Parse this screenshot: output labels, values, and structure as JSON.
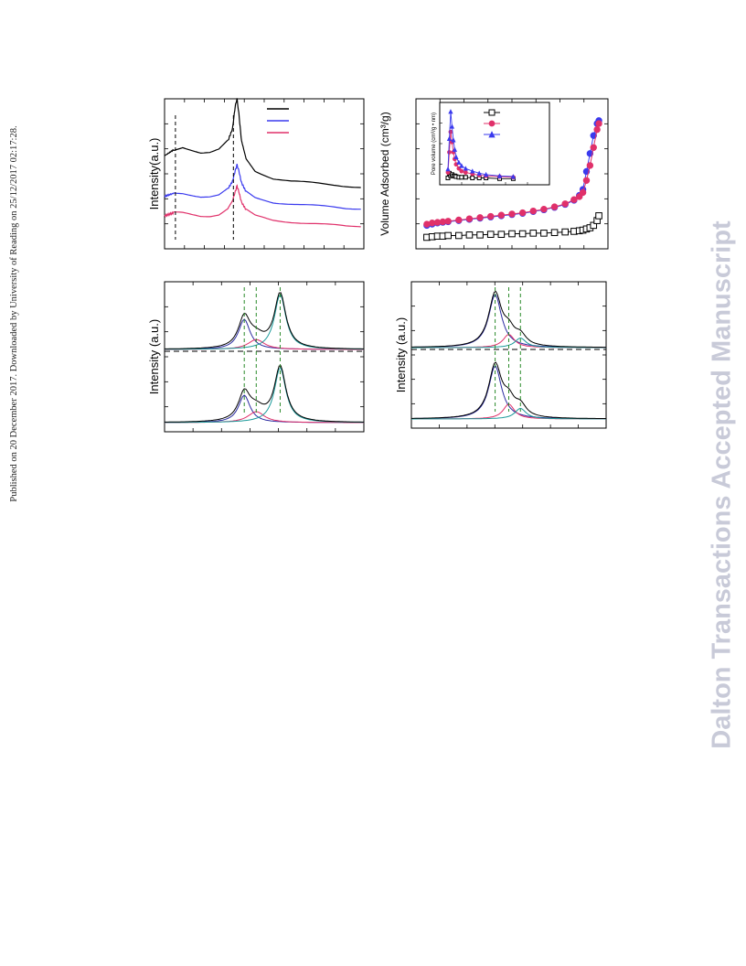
{
  "page": {
    "side_note": "Published on 20 December 2017. Downloaded by University of Reading on 25/12/2017 02:17:28.",
    "watermark": "Dalton Transactions Accepted Manuscript"
  },
  "chart_data": [
    {
      "id": "xrd",
      "type": "line",
      "ylabel": "Intensity(a.u.)",
      "xlabel": "",
      "legend_placement": "top-right",
      "series": [
        {
          "color": "#000000",
          "x": [
            0,
            5,
            10,
            20,
            30,
            40,
            50,
            60,
            70,
            75,
            78,
            80,
            82,
            85,
            90,
            100,
            120,
            140,
            160,
            180,
            200,
            220
          ],
          "y": [
            0.62,
            0.64,
            0.66,
            0.68,
            0.66,
            0.64,
            0.64,
            0.66,
            0.72,
            0.8,
            0.95,
            1.0,
            0.9,
            0.72,
            0.6,
            0.52,
            0.47,
            0.45,
            0.44,
            0.43,
            0.42,
            0.41
          ]
        },
        {
          "color": "#3a3aee",
          "x": [
            0,
            5,
            10,
            20,
            30,
            40,
            50,
            60,
            70,
            75,
            78,
            80,
            82,
            85,
            90,
            100,
            120,
            140,
            160,
            180,
            200,
            220
          ],
          "y": [
            0.35,
            0.36,
            0.37,
            0.37,
            0.36,
            0.35,
            0.35,
            0.36,
            0.4,
            0.45,
            0.52,
            0.56,
            0.52,
            0.44,
            0.38,
            0.34,
            0.31,
            0.3,
            0.29,
            0.28,
            0.27,
            0.27
          ]
        },
        {
          "color": "#e0306a",
          "x": [
            0,
            5,
            10,
            20,
            30,
            40,
            50,
            60,
            70,
            75,
            78,
            80,
            82,
            85,
            90,
            100,
            120,
            140,
            160,
            180,
            200,
            220
          ],
          "y": [
            0.22,
            0.23,
            0.24,
            0.24,
            0.23,
            0.22,
            0.22,
            0.23,
            0.27,
            0.32,
            0.38,
            0.42,
            0.38,
            0.31,
            0.26,
            0.22,
            0.19,
            0.18,
            0.17,
            0.16,
            0.15,
            0.15
          ]
        }
      ],
      "reference_lines": [
        12,
        76
      ]
    },
    {
      "id": "bet",
      "type": "scatter",
      "ylabel": "Volume Adsorbed (cm³/g)",
      "xlabel": "",
      "series": [
        {
          "color": "#000000",
          "marker": "square",
          "x": [
            0.02,
            0.05,
            0.08,
            0.11,
            0.14,
            0.2,
            0.26,
            0.32,
            0.38,
            0.44,
            0.5,
            0.56,
            0.62,
            0.68,
            0.74,
            0.8,
            0.85,
            0.88,
            0.9,
            0.92,
            0.94,
            0.96,
            0.98,
            0.99
          ],
          "y": [
            10,
            11,
            12,
            12,
            13,
            13,
            14,
            14,
            15,
            15,
            16,
            16,
            17,
            17,
            18,
            19,
            20,
            21,
            22,
            24,
            26,
            30,
            38,
            46
          ]
        },
        {
          "color": "#3a3aee",
          "marker": "circle",
          "x": [
            0.02,
            0.05,
            0.08,
            0.11,
            0.14,
            0.2,
            0.26,
            0.32,
            0.38,
            0.44,
            0.5,
            0.56,
            0.62,
            0.68,
            0.74,
            0.8,
            0.85,
            0.88,
            0.9,
            0.92,
            0.94,
            0.96,
            0.98,
            0.99
          ],
          "y": [
            30,
            32,
            34,
            35,
            36,
            38,
            40,
            42,
            44,
            46,
            48,
            50,
            53,
            56,
            60,
            65,
            72,
            80,
            90,
            120,
            150,
            180,
            200,
            205
          ]
        },
        {
          "color": "#e0306a",
          "marker": "circle",
          "x": [
            0.02,
            0.05,
            0.08,
            0.11,
            0.14,
            0.2,
            0.26,
            0.32,
            0.38,
            0.44,
            0.5,
            0.56,
            0.62,
            0.68,
            0.74,
            0.8,
            0.85,
            0.88,
            0.9,
            0.92,
            0.94,
            0.96,
            0.98,
            0.99
          ],
          "y": [
            32,
            34,
            35,
            36,
            37,
            39,
            41,
            43,
            45,
            47,
            49,
            51,
            54,
            57,
            61,
            66,
            73,
            78,
            85,
            105,
            130,
            160,
            190,
            200
          ]
        }
      ],
      "inset": {
        "ylabel": "Pore volume (cm³/g • nm)",
        "legend_placement": "top-right",
        "series": [
          {
            "color": "#000000",
            "marker": "square",
            "x": [
              2,
              3,
              4,
              5,
              6,
              7,
              8,
              10,
              12,
              15,
              20,
              25,
              30,
              40,
              50
            ],
            "y": [
              0.02,
              0.09,
              0.05,
              0.07,
              0.05,
              0.05,
              0.04,
              0.03,
              0.03,
              0.03,
              0.02,
              0.02,
              0.02,
              0.01,
              0.01
            ]
          },
          {
            "color": "#e0306a",
            "marker": "circle",
            "x": [
              2,
              3,
              4,
              5,
              6,
              7,
              8,
              10,
              12,
              15,
              20,
              25,
              30,
              40,
              50
            ],
            "y": [
              0.1,
              0.4,
              0.7,
              0.55,
              0.4,
              0.3,
              0.22,
              0.16,
              0.12,
              0.1,
              0.08,
              0.06,
              0.05,
              0.04,
              0.03
            ]
          },
          {
            "color": "#3a3aee",
            "marker": "triangle",
            "x": [
              2,
              3,
              4,
              5,
              6,
              7,
              8,
              10,
              12,
              15,
              20,
              25,
              30,
              40,
              50
            ],
            "y": [
              0.15,
              0.6,
              1.0,
              0.78,
              0.58,
              0.44,
              0.33,
              0.25,
              0.2,
              0.16,
              0.12,
              0.09,
              0.07,
              0.05,
              0.04
            ]
          }
        ]
      }
    },
    {
      "id": "xps-left",
      "type": "line",
      "ylabel": "Intensity (a.u.)",
      "xlabel": "",
      "panels": [
        {
          "name": "top",
          "peaks": [
            {
              "color": "#2a2aa0",
              "center": 0.4,
              "height": 0.55,
              "width": 0.035
            },
            {
              "color": "#e0306a",
              "center": 0.46,
              "height": 0.18,
              "width": 0.05
            },
            {
              "color": "#1a9a9a",
              "center": 0.58,
              "height": 1.0,
              "width": 0.035
            }
          ]
        },
        {
          "name": "bottom",
          "peaks": [
            {
              "color": "#2a2aa0",
              "center": 0.4,
              "height": 0.5,
              "width": 0.035
            },
            {
              "color": "#e0306a",
              "center": 0.46,
              "height": 0.2,
              "width": 0.05
            },
            {
              "color": "#1a9a9a",
              "center": 0.58,
              "height": 1.0,
              "width": 0.035
            }
          ]
        }
      ],
      "reference_lines": [
        0.4,
        0.46,
        0.58
      ]
    },
    {
      "id": "xps-right",
      "type": "line",
      "ylabel": "Intensity (a.u.)",
      "xlabel": "",
      "panels": [
        {
          "name": "top",
          "peaks": [
            {
              "color": "#2a2aa0",
              "center": 0.43,
              "height": 1.0,
              "width": 0.04
            },
            {
              "color": "#e0306a",
              "center": 0.5,
              "height": 0.25,
              "width": 0.035
            },
            {
              "color": "#1a9a9a",
              "center": 0.56,
              "height": 0.18,
              "width": 0.035
            }
          ]
        },
        {
          "name": "bottom",
          "peaks": [
            {
              "color": "#2a2aa0",
              "center": 0.43,
              "height": 1.0,
              "width": 0.04
            },
            {
              "color": "#e0306a",
              "center": 0.5,
              "height": 0.28,
              "width": 0.035
            },
            {
              "color": "#1a9a9a",
              "center": 0.56,
              "height": 0.2,
              "width": 0.035
            }
          ]
        }
      ],
      "reference_lines": [
        0.43,
        0.5,
        0.56
      ]
    }
  ]
}
